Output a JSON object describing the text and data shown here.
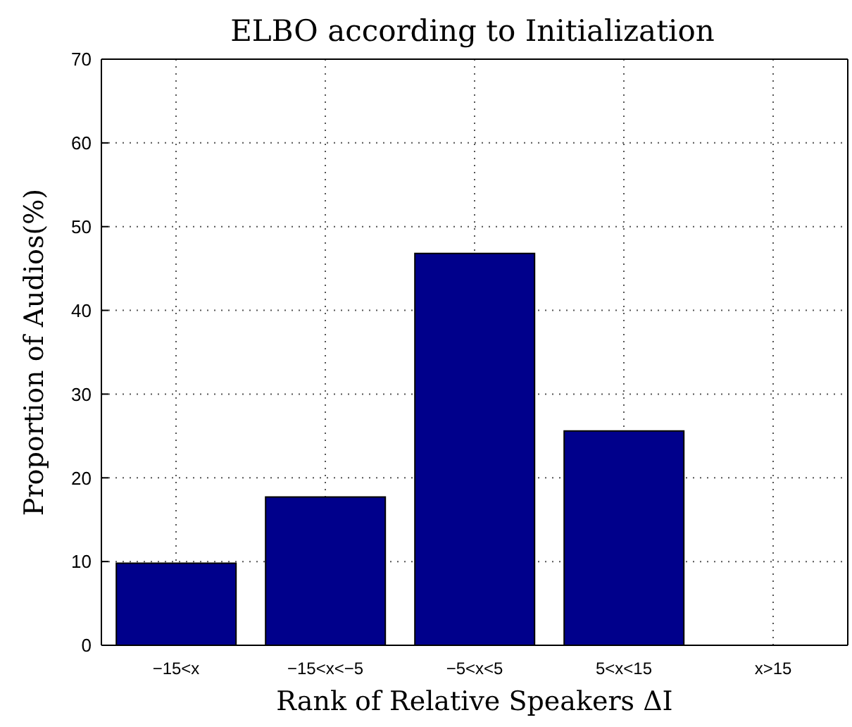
{
  "chart_data": {
    "type": "bar",
    "title": "ELBO according to Initialization",
    "xlabel": "Rank of Relative Speakers ΔI",
    "ylabel": "Proportion of Audios(%)",
    "categories": [
      "−15<x",
      "−15<x<−5",
      "−5<x<5",
      "5<x<15",
      "x>15"
    ],
    "values": [
      9.8,
      17.7,
      46.8,
      25.6,
      0
    ],
    "color": "#00008b",
    "ylim": [
      0,
      70
    ],
    "yticks": [
      0,
      10,
      20,
      30,
      40,
      50,
      60,
      70
    ],
    "grid": true
  }
}
